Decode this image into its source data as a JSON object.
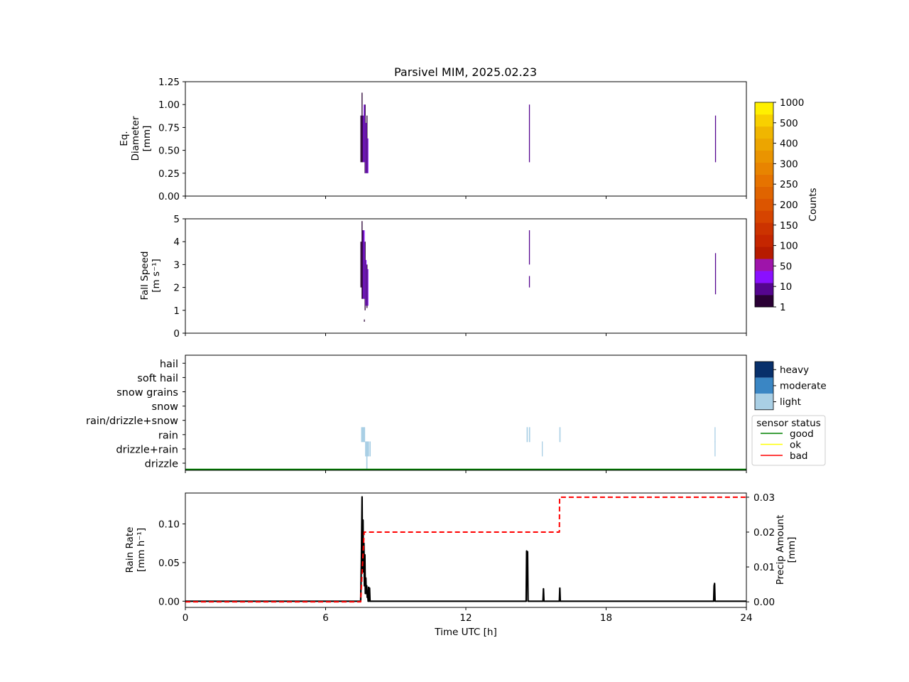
{
  "title": "Parsivel MIM, 2025.02.23",
  "colors": {
    "good": "#008000",
    "ok": "#ffff00",
    "bad": "#ff0000",
    "heavy": "#08306b",
    "moderate": "#3a86c4",
    "light": "#a9cfe5",
    "rain_rate_line": "#000000",
    "precip_amount_line": "#ff0000"
  },
  "colorbar": {
    "label": "Counts",
    "tick_labels": [
      "1",
      "10",
      "50",
      "100",
      "150",
      "200",
      "250",
      "300",
      "400",
      "500",
      "1000"
    ],
    "colors": [
      "#2a0035",
      "#55058f",
      "#8a10ff",
      "#9e14aa",
      "#b61b00",
      "#c52600",
      "#cc3300",
      "#d64400",
      "#dc5500",
      "#e06400",
      "#e67300",
      "#e88400",
      "#ea9400",
      "#eca500",
      "#f0b600",
      "#f8d000",
      "#fff000"
    ]
  },
  "chart_data": [
    {
      "type": "heatmap",
      "panel": "diameter",
      "ylabel_lines": [
        "Eq.",
        "Diameter",
        "[mm]"
      ],
      "xlim": [
        0,
        24
      ],
      "ylim": [
        0,
        1.25
      ],
      "yticks": [
        "0.00",
        "0.25",
        "0.50",
        "0.75",
        "1.00",
        "1.25"
      ],
      "grid": false,
      "cells": [
        {
          "t": 7.49,
          "dt": 0.05,
          "y0": 0.37,
          "y1": 0.88,
          "level": 0
        },
        {
          "t": 7.54,
          "dt": 0.04,
          "y0": 0.37,
          "y1": 1.13,
          "level": 0
        },
        {
          "t": 7.58,
          "dt": 0.05,
          "y0": 0.37,
          "y1": 0.88,
          "level": 1
        },
        {
          "t": 7.63,
          "dt": 0.04,
          "y0": 0.37,
          "y1": 1.0,
          "level": 2
        },
        {
          "t": 7.67,
          "dt": 0.04,
          "y0": 0.25,
          "y1": 1.0,
          "level": 0
        },
        {
          "t": 7.71,
          "dt": 0.04,
          "y0": 0.25,
          "y1": 0.8,
          "level": 2
        },
        {
          "t": 7.75,
          "dt": 0.04,
          "y0": 0.25,
          "y1": 0.88,
          "level": 0
        },
        {
          "t": 7.79,
          "dt": 0.04,
          "y0": 0.25,
          "y1": 0.63,
          "level": 2
        },
        {
          "t": 14.7,
          "dt": 0.04,
          "y0": 0.37,
          "y1": 1.0,
          "level": 1
        },
        {
          "t": 22.66,
          "dt": 0.04,
          "y0": 0.37,
          "y1": 0.88,
          "level": 1
        }
      ]
    },
    {
      "type": "heatmap",
      "panel": "fall_speed",
      "ylabel_lines": [
        "Fall Speed",
        "[m s⁻¹]"
      ],
      "xlim": [
        0,
        24
      ],
      "ylim": [
        0,
        5
      ],
      "yticks": [
        "0",
        "1",
        "2",
        "3",
        "4",
        "5"
      ],
      "grid": false,
      "cells": [
        {
          "t": 7.49,
          "dt": 0.05,
          "y0": 2.0,
          "y1": 4.0,
          "level": 0
        },
        {
          "t": 7.54,
          "dt": 0.04,
          "y0": 1.5,
          "y1": 4.9,
          "level": 0
        },
        {
          "t": 7.58,
          "dt": 0.05,
          "y0": 1.5,
          "y1": 4.5,
          "level": 1
        },
        {
          "t": 7.63,
          "dt": 0.04,
          "y0": 1.5,
          "y1": 4.5,
          "level": 2
        },
        {
          "t": 7.67,
          "dt": 0.04,
          "y0": 1.0,
          "y1": 4.0,
          "level": 0
        },
        {
          "t": 7.71,
          "dt": 0.04,
          "y0": 1.2,
          "y1": 3.2,
          "level": 2
        },
        {
          "t": 7.75,
          "dt": 0.04,
          "y0": 1.1,
          "y1": 3.0,
          "level": 0
        },
        {
          "t": 7.79,
          "dt": 0.04,
          "y0": 1.2,
          "y1": 2.8,
          "level": 2
        },
        {
          "t": 7.64,
          "dt": 0.03,
          "y0": 0.5,
          "y1": 0.6,
          "level": 0
        },
        {
          "t": 14.7,
          "dt": 0.04,
          "y0": 3.0,
          "y1": 4.5,
          "level": 1
        },
        {
          "t": 14.7,
          "dt": 0.04,
          "y0": 2.0,
          "y1": 2.5,
          "level": 1
        },
        {
          "t": 22.66,
          "dt": 0.04,
          "y0": 1.7,
          "y1": 3.5,
          "level": 1
        }
      ]
    },
    {
      "type": "heatmap",
      "panel": "precip_type",
      "xlim": [
        0,
        24
      ],
      "categories": [
        "drizzle",
        "drizzle+rain",
        "rain",
        "rain/drizzle+snow",
        "snow",
        "snow grains",
        "soft hail",
        "hail"
      ],
      "intensity_legend": [
        "heavy",
        "moderate",
        "light"
      ],
      "status_legend_title": "sensor status",
      "status_legend": [
        "good",
        "ok",
        "bad"
      ],
      "sensor_status": "good",
      "cells": [
        {
          "t": 7.52,
          "dt": 0.17,
          "cat": 2,
          "intensity": "light"
        },
        {
          "t": 7.69,
          "dt": 0.17,
          "cat": 1,
          "intensity": "light"
        },
        {
          "t": 7.88,
          "dt": 0.05,
          "cat": 1,
          "intensity": "light"
        },
        {
          "t": 7.74,
          "dt": 0.05,
          "cat": 0,
          "intensity": "light"
        },
        {
          "t": 14.6,
          "dt": 0.05,
          "cat": 2,
          "intensity": "light"
        },
        {
          "t": 14.7,
          "dt": 0.05,
          "cat": 2,
          "intensity": "light"
        },
        {
          "t": 16.0,
          "dt": 0.05,
          "cat": 2,
          "intensity": "light"
        },
        {
          "t": 15.25,
          "dt": 0.04,
          "cat": 1,
          "intensity": "light"
        },
        {
          "t": 22.64,
          "dt": 0.04,
          "cat": 2,
          "intensity": "light"
        },
        {
          "t": 22.64,
          "dt": 0.04,
          "cat": 1,
          "intensity": "light"
        }
      ]
    },
    {
      "type": "line",
      "panel": "rain",
      "xlabel": "Time UTC [h]",
      "ylabel_lines": [
        "Rain Rate",
        "[mm h⁻¹]"
      ],
      "y2label_lines": [
        "Precip Amount",
        "[mm]"
      ],
      "xlim": [
        0,
        24
      ],
      "xticks": [
        "0",
        "6",
        "12",
        "18",
        "24"
      ],
      "ylim": [
        -0.008,
        0.14
      ],
      "yticks": [
        "0.00",
        "0.05",
        "0.10"
      ],
      "y2lim": [
        -0.0016,
        0.0312
      ],
      "y2ticks": [
        "0.00",
        "0.01",
        "0.02",
        "0.03"
      ],
      "series": [
        {
          "x": [
            0,
            7.45,
            7.5,
            7.53,
            7.56,
            7.58,
            7.6,
            7.62,
            7.64,
            7.66,
            7.68,
            7.7,
            7.72,
            7.74,
            7.76,
            7.78,
            7.8,
            7.82,
            7.84,
            7.86,
            7.88,
            7.9,
            7.92,
            7.94,
            14.58,
            14.6,
            14.62,
            14.64,
            14.66,
            14.68,
            14.7,
            15.3,
            15.32,
            15.34,
            15.36,
            16.0,
            16.02,
            16.04,
            16.06,
            22.6,
            22.62,
            22.64,
            22.66,
            22.68,
            24
          ],
          "y": [
            0,
            0,
            0,
            0.05,
            0.135,
            0.04,
            0.105,
            0.038,
            0.075,
            0.02,
            0.06,
            0.01,
            0.03,
            0.01,
            0.02,
            0.005,
            0.01,
            0.0,
            0.018,
            0.0,
            0.017,
            0.0,
            0,
            0,
            0,
            0.065,
            0.063,
            0.064,
            0.0,
            0,
            0,
            0,
            0.016,
            0.0,
            0,
            0,
            0.017,
            0.0,
            0,
            0,
            0.02,
            0.023,
            0.0,
            0,
            0
          ],
          "axis": "left"
        },
        {
          "x": [
            0,
            7.5,
            7.65,
            7.67,
            16.0,
            16.01,
            24
          ],
          "y": [
            0,
            0,
            0.02,
            0.02,
            0.02,
            0.03,
            0.03
          ],
          "axis": "right",
          "style": "dashed"
        }
      ]
    }
  ]
}
